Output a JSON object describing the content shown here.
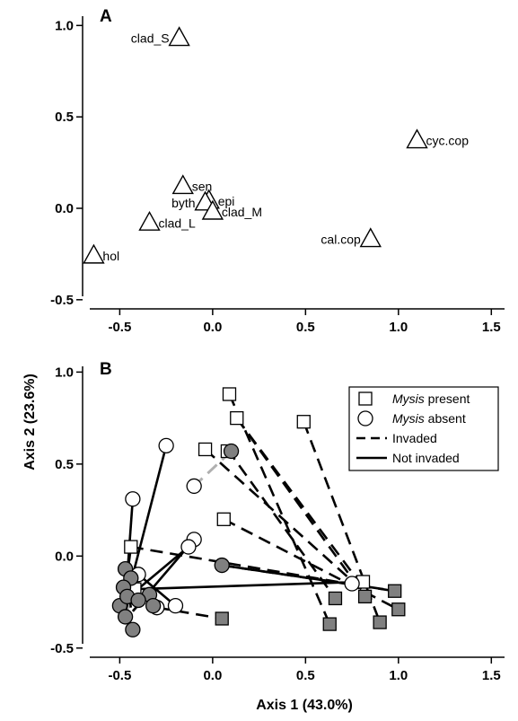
{
  "figure": {
    "xlabel": "Axis 1 (43.0%)",
    "ylabel": "Axis 2 (23.6%)",
    "colors": {
      "filled_marker": "#808080",
      "invaded_grey": "#b0b0b0",
      "line": "#000000"
    }
  },
  "chart_data": [
    {
      "panel": "A",
      "type": "scatter",
      "xlim": [
        -0.7,
        1.6
      ],
      "ylim": [
        -0.55,
        1.1
      ],
      "x_ticks": [
        "-0.5",
        "0.0",
        "0.5",
        "1.0",
        "1.5"
      ],
      "y_ticks": [
        "-0.5",
        "0.0",
        "0.5",
        "1.0"
      ],
      "marker": "triangle",
      "points": [
        {
          "label": "clad_S",
          "x": -0.18,
          "y": 0.93,
          "label_side": "left"
        },
        {
          "label": "cyc.cop",
          "x": 1.1,
          "y": 0.37,
          "label_side": "right"
        },
        {
          "label": "sen",
          "x": -0.16,
          "y": 0.12,
          "label_side": "right"
        },
        {
          "label": "epi",
          "x": -0.02,
          "y": 0.04,
          "label_side": "right"
        },
        {
          "label": "byth",
          "x": -0.04,
          "y": 0.03,
          "label_side": "left"
        },
        {
          "label": "clad_M",
          "x": 0.0,
          "y": -0.02,
          "label_side": "right"
        },
        {
          "label": "clad_L",
          "x": -0.34,
          "y": -0.08,
          "label_side": "right"
        },
        {
          "label": "cal.cop",
          "x": 0.85,
          "y": -0.17,
          "label_side": "left"
        },
        {
          "label": "hol",
          "x": -0.64,
          "y": -0.26,
          "label_side": "right"
        }
      ]
    },
    {
      "panel": "B",
      "type": "scatter",
      "xlim": [
        -0.7,
        1.6
      ],
      "ylim": [
        -0.55,
        1.08
      ],
      "x_ticks": [
        "-0.5",
        "0.0",
        "0.5",
        "1.0",
        "1.5"
      ],
      "y_ticks": [
        "-0.5",
        "0.0",
        "0.5",
        "1.0"
      ],
      "legend": {
        "position": "top-right",
        "entries": [
          {
            "marker": "square",
            "italic": "Mysis",
            "text": " present"
          },
          {
            "marker": "circle",
            "italic": "Mysis",
            "text": " absent"
          },
          {
            "line": "dashed",
            "text": "Invaded"
          },
          {
            "line": "solid",
            "text": "Not invaded"
          }
        ]
      },
      "segments": [
        {
          "x1": 0.09,
          "y1": 0.88,
          "x2": 0.63,
          "y2": -0.37,
          "style": "dashed"
        },
        {
          "x1": 0.13,
          "y1": 0.75,
          "x2": 0.81,
          "y2": -0.17,
          "style": "dashed"
        },
        {
          "x1": 0.13,
          "y1": 0.75,
          "x2": 0.82,
          "y2": -0.22,
          "style": "dashed"
        },
        {
          "x1": 0.49,
          "y1": 0.73,
          "x2": 0.9,
          "y2": -0.36,
          "style": "dashed"
        },
        {
          "x1": 0.08,
          "y1": 0.58,
          "x2": 0.66,
          "y2": -0.23,
          "style": "dashed"
        },
        {
          "x1": -0.04,
          "y1": 0.58,
          "x2": 0.8,
          "y2": -0.18,
          "style": "dashed"
        },
        {
          "x1": 0.06,
          "y1": 0.2,
          "x2": 1.0,
          "y2": -0.29,
          "style": "dashed"
        },
        {
          "x1": 0.05,
          "y1": -0.05,
          "x2": 0.98,
          "y2": -0.19,
          "style": "dashed"
        },
        {
          "x1": -0.44,
          "y1": 0.05,
          "x2": 0.73,
          "y2": -0.15,
          "style": "dashed"
        },
        {
          "x1": -0.42,
          "y1": -0.18,
          "x2": 0.81,
          "y2": -0.14,
          "style": "solid"
        },
        {
          "x1": 0.05,
          "y1": -0.05,
          "x2": 0.92,
          "y2": -0.18,
          "style": "solid"
        },
        {
          "x1": -0.3,
          "y1": -0.28,
          "x2": 0.05,
          "y2": -0.34,
          "style": "dashed"
        },
        {
          "x1": 0.1,
          "y1": 0.57,
          "x2": -0.1,
          "y2": 0.38,
          "style": "dashed_grey"
        },
        {
          "x1": -0.43,
          "y1": -0.3,
          "x2": -0.33,
          "y2": -0.2,
          "style": "dashed_grey"
        },
        {
          "x1": -0.48,
          "y1": -0.33,
          "x2": -0.42,
          "y2": -0.22,
          "style": "dashed_grey"
        },
        {
          "x1": -0.25,
          "y1": 0.6,
          "x2": -0.48,
          "y2": -0.3,
          "style": "solid"
        },
        {
          "x1": -0.43,
          "y1": 0.31,
          "x2": -0.47,
          "y2": -0.25,
          "style": "solid"
        },
        {
          "x1": -0.13,
          "y1": 0.05,
          "x2": -0.45,
          "y2": -0.22,
          "style": "solid"
        },
        {
          "x1": -0.1,
          "y1": 0.09,
          "x2": -0.43,
          "y2": -0.3,
          "style": "solid"
        },
        {
          "x1": -0.4,
          "y1": -0.1,
          "x2": -0.2,
          "y2": -0.27,
          "style": "solid"
        },
        {
          "x1": -0.47,
          "y1": -0.07,
          "x2": -0.44,
          "y2": -0.28,
          "style": "solid"
        },
        {
          "x1": -0.44,
          "y1": 0.05,
          "x2": -0.48,
          "y2": -0.27,
          "style": "solid"
        },
        {
          "x1": -0.47,
          "y1": -0.3,
          "x2": -0.42,
          "y2": -0.14,
          "style": "solid"
        }
      ],
      "points": [
        {
          "shape": "square",
          "fill": "open",
          "x": 0.09,
          "y": 0.88
        },
        {
          "shape": "square",
          "fill": "open",
          "x": 0.13,
          "y": 0.75
        },
        {
          "shape": "square",
          "fill": "open",
          "x": 0.49,
          "y": 0.73
        },
        {
          "shape": "square",
          "fill": "open",
          "x": -0.04,
          "y": 0.58
        },
        {
          "shape": "square",
          "fill": "open",
          "x": 0.08,
          "y": 0.57
        },
        {
          "shape": "square",
          "fill": "open",
          "x": 0.06,
          "y": 0.2
        },
        {
          "shape": "square",
          "fill": "open",
          "x": -0.44,
          "y": 0.05
        },
        {
          "shape": "square",
          "fill": "open",
          "x": -0.42,
          "y": -0.18
        },
        {
          "shape": "square",
          "fill": "open",
          "x": 0.81,
          "y": -0.14
        },
        {
          "shape": "square",
          "fill": "filled",
          "x": 0.98,
          "y": -0.19
        },
        {
          "shape": "square",
          "fill": "filled",
          "x": 1.0,
          "y": -0.29
        },
        {
          "shape": "square",
          "fill": "filled",
          "x": 0.82,
          "y": -0.22
        },
        {
          "shape": "square",
          "fill": "filled",
          "x": 0.9,
          "y": -0.36
        },
        {
          "shape": "square",
          "fill": "filled",
          "x": 0.66,
          "y": -0.23
        },
        {
          "shape": "square",
          "fill": "filled",
          "x": 0.63,
          "y": -0.37
        },
        {
          "shape": "square",
          "fill": "filled",
          "x": 0.05,
          "y": -0.34
        },
        {
          "shape": "circle",
          "fill": "open",
          "x": -0.25,
          "y": 0.6
        },
        {
          "shape": "circle",
          "fill": "open",
          "x": -0.1,
          "y": 0.38
        },
        {
          "shape": "circle",
          "fill": "open",
          "x": -0.43,
          "y": 0.31
        },
        {
          "shape": "circle",
          "fill": "open",
          "x": -0.1,
          "y": 0.09
        },
        {
          "shape": "circle",
          "fill": "open",
          "x": -0.13,
          "y": 0.05
        },
        {
          "shape": "circle",
          "fill": "open",
          "x": -0.4,
          "y": -0.1
        },
        {
          "shape": "circle",
          "fill": "open",
          "x": -0.2,
          "y": -0.27
        },
        {
          "shape": "circle",
          "fill": "open",
          "x": -0.3,
          "y": -0.28
        },
        {
          "shape": "circle",
          "fill": "open",
          "x": 0.75,
          "y": -0.15
        },
        {
          "shape": "circle",
          "fill": "filled",
          "x": 0.1,
          "y": 0.57
        },
        {
          "shape": "circle",
          "fill": "filled",
          "x": 0.05,
          "y": -0.05
        },
        {
          "shape": "circle",
          "fill": "filled",
          "x": -0.47,
          "y": -0.07
        },
        {
          "shape": "circle",
          "fill": "filled",
          "x": -0.44,
          "y": -0.12
        },
        {
          "shape": "circle",
          "fill": "filled",
          "x": -0.48,
          "y": -0.17
        },
        {
          "shape": "circle",
          "fill": "filled",
          "x": -0.5,
          "y": -0.27
        },
        {
          "shape": "circle",
          "fill": "filled",
          "x": -0.46,
          "y": -0.22
        },
        {
          "shape": "circle",
          "fill": "filled",
          "x": -0.34,
          "y": -0.21
        },
        {
          "shape": "circle",
          "fill": "filled",
          "x": -0.32,
          "y": -0.27
        },
        {
          "shape": "circle",
          "fill": "filled",
          "x": -0.47,
          "y": -0.33
        },
        {
          "shape": "circle",
          "fill": "filled",
          "x": -0.43,
          "y": -0.4
        },
        {
          "shape": "circle",
          "fill": "filled",
          "x": -0.4,
          "y": -0.24
        }
      ]
    }
  ]
}
